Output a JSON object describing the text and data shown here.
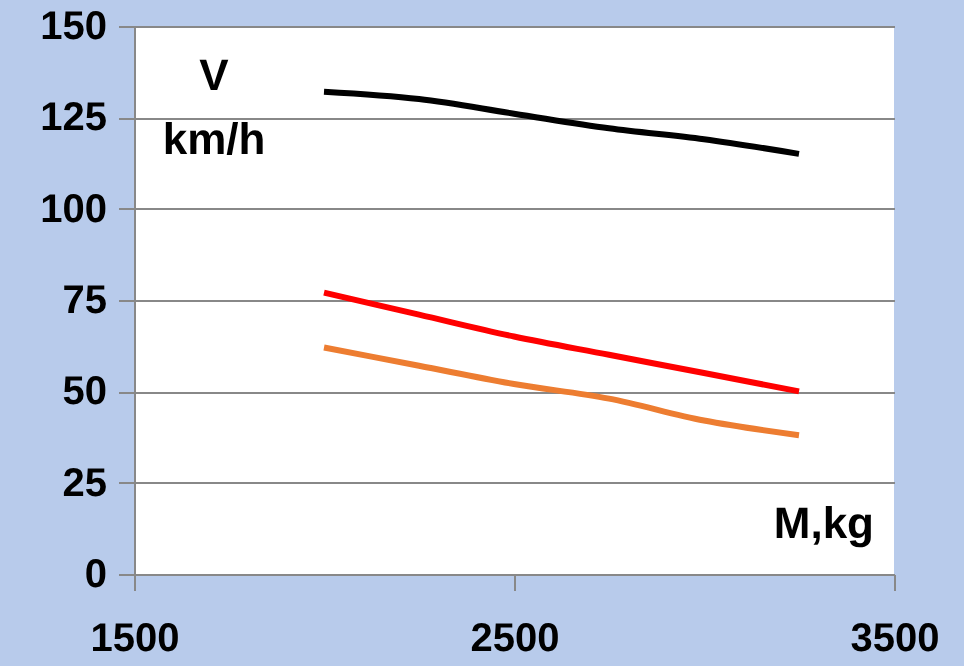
{
  "chart_data": {
    "type": "line",
    "xlabel": "M,kg",
    "ylabel": "V km/h",
    "x": [
      2000,
      2250,
      2500,
      2750,
      3000,
      3250
    ],
    "series": [
      {
        "color": "#000000",
        "values": [
          132,
          130,
          126,
          122,
          119,
          115
        ]
      },
      {
        "color": "#ff0000",
        "values": [
          77,
          71,
          65,
          60,
          55,
          50
        ]
      },
      {
        "color": "#ed7d31",
        "values": [
          62,
          57,
          52,
          48,
          42,
          38
        ]
      }
    ],
    "xlim": [
      1500,
      3500
    ],
    "xticks": [
      1500,
      2500,
      3500
    ],
    "ylim": [
      0,
      150
    ],
    "yticks": [
      0,
      25,
      50,
      75,
      100,
      125,
      150
    ],
    "grid": "y",
    "marker": "none",
    "line_style": "solid"
  }
}
